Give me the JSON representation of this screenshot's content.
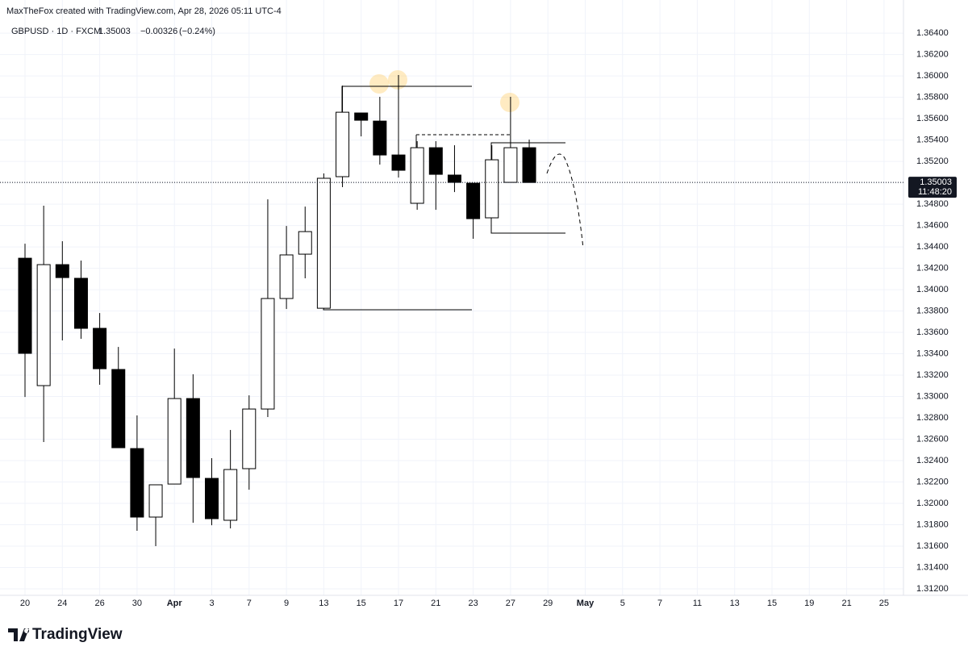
{
  "chart_data": {
    "type": "candlestick",
    "attribution": "MaxTheFox created with TradingView.com, Apr 28, 2026 05:11 UTC-4",
    "symbol": "GBPUSD · 1D · FXCM",
    "last_price": 1.35003,
    "change": {
      "value": -0.00326,
      "label": "−0.00326"
    },
    "change_percent": {
      "value": -0.24,
      "label": "(−0.24%)"
    },
    "countdown": "11:48:20",
    "brand": "TradingView",
    "categories": [
      "20",
      null,
      "24",
      null,
      "26",
      null,
      "30",
      null,
      "Apr",
      null,
      "3",
      null,
      "7",
      null,
      "9",
      null,
      "13",
      null,
      "15",
      null,
      "17",
      null,
      "21",
      null,
      "23",
      null,
      "27",
      null,
      "29",
      null,
      "May",
      null,
      "5",
      null,
      "7",
      null,
      "11",
      null,
      "13",
      null,
      "15",
      null,
      "19",
      null,
      "21",
      null,
      "25"
    ],
    "open": [
      1.34294,
      1.33102,
      1.34234,
      1.34106,
      1.33638,
      1.33253,
      1.32513,
      1.31872,
      1.32181,
      1.32981,
      1.32234,
      1.31842,
      1.32325,
      1.32883,
      1.33917,
      1.34332,
      1.33826,
      1.35057,
      1.35653,
      1.35577,
      1.3526,
      1.34808,
      1.35328,
      1.35072,
      1.34996,
      1.34672,
      1.35004,
      1.35328,
      null,
      null,
      null,
      null,
      null,
      null,
      null,
      null,
      null,
      null,
      null,
      null,
      null,
      null,
      null,
      null,
      null,
      null,
      null
    ],
    "high": [
      1.3443,
      1.34785,
      1.34453,
      1.34272,
      1.33781,
      1.33464,
      1.32823,
      1.32174,
      1.33449,
      1.33208,
      1.32423,
      1.32687,
      1.33011,
      1.34845,
      1.34596,
      1.34777,
      1.35087,
      1.35909,
      1.35653,
      1.35804,
      1.36008,
      1.35389,
      1.35389,
      1.35351,
      1.34996,
      1.35351,
      1.35804,
      1.35404,
      null,
      null,
      null,
      null,
      null,
      null,
      null,
      null,
      null,
      null,
      null,
      null,
      null,
      null,
      null,
      null,
      null,
      null,
      null
    ],
    "low": [
      1.32996,
      1.32574,
      1.33525,
      1.3354,
      1.3311,
      1.32521,
      1.31744,
      1.316,
      1.32181,
      1.31819,
      1.31796,
      1.31766,
      1.32128,
      1.32808,
      1.33819,
      1.34106,
      1.33819,
      1.34959,
      1.35434,
      1.3517,
      1.35049,
      1.34747,
      1.34747,
      1.34913,
      1.34476,
      1.34672,
      1.35004,
      1.35003,
      null,
      null,
      null,
      null,
      null,
      null,
      null,
      null,
      null,
      null,
      null,
      null,
      null,
      null,
      null,
      null,
      null,
      null,
      null
    ],
    "close": [
      1.33404,
      1.34234,
      1.34113,
      1.33638,
      1.3326,
      1.32521,
      1.31872,
      1.32174,
      1.32981,
      1.32242,
      1.31857,
      1.32317,
      1.32883,
      1.33917,
      1.34325,
      1.34543,
      1.35042,
      1.3566,
      1.35585,
      1.3526,
      1.35117,
      1.35328,
      1.35079,
      1.35004,
      1.34664,
      1.35215,
      1.35328,
      1.35003,
      null,
      null,
      null,
      null,
      null,
      null,
      null,
      null,
      null,
      null,
      null,
      null,
      null,
      null,
      null,
      null,
      null,
      null,
      null
    ],
    "ylim": [
      1.3114,
      1.3671
    ],
    "yticks": [
      {
        "value": 1.312,
        "label": "1.31200"
      },
      {
        "value": 1.314,
        "label": "1.31400"
      },
      {
        "value": 1.316,
        "label": "1.31600"
      },
      {
        "value": 1.318,
        "label": "1.31800"
      },
      {
        "value": 1.32,
        "label": "1.32000"
      },
      {
        "value": 1.322,
        "label": "1.32200"
      },
      {
        "value": 1.324,
        "label": "1.32400"
      },
      {
        "value": 1.326,
        "label": "1.32600"
      },
      {
        "value": 1.328,
        "label": "1.32800"
      },
      {
        "value": 1.33,
        "label": "1.33000"
      },
      {
        "value": 1.332,
        "label": "1.33200"
      },
      {
        "value": 1.334,
        "label": "1.33400"
      },
      {
        "value": 1.336,
        "label": "1.33600"
      },
      {
        "value": 1.338,
        "label": "1.33800"
      },
      {
        "value": 1.34,
        "label": "1.34000"
      },
      {
        "value": 1.342,
        "label": "1.34200"
      },
      {
        "value": 1.344,
        "label": "1.34400"
      },
      {
        "value": 1.346,
        "label": "1.34600"
      },
      {
        "value": 1.348,
        "label": "1.34800"
      },
      {
        "value": 1.35,
        "label": "1.35000"
      },
      {
        "value": 1.352,
        "label": "1.35200"
      },
      {
        "value": 1.354,
        "label": "1.35400"
      },
      {
        "value": 1.356,
        "label": "1.35600"
      },
      {
        "value": 1.358,
        "label": "1.35800"
      },
      {
        "value": 1.36,
        "label": "1.36000"
      },
      {
        "value": 1.362,
        "label": "1.36200"
      },
      {
        "value": 1.364,
        "label": "1.36400"
      }
    ],
    "grid": true,
    "up_color": "#ffffff",
    "down_color": "#000000",
    "wick_color": "#000000"
  }
}
